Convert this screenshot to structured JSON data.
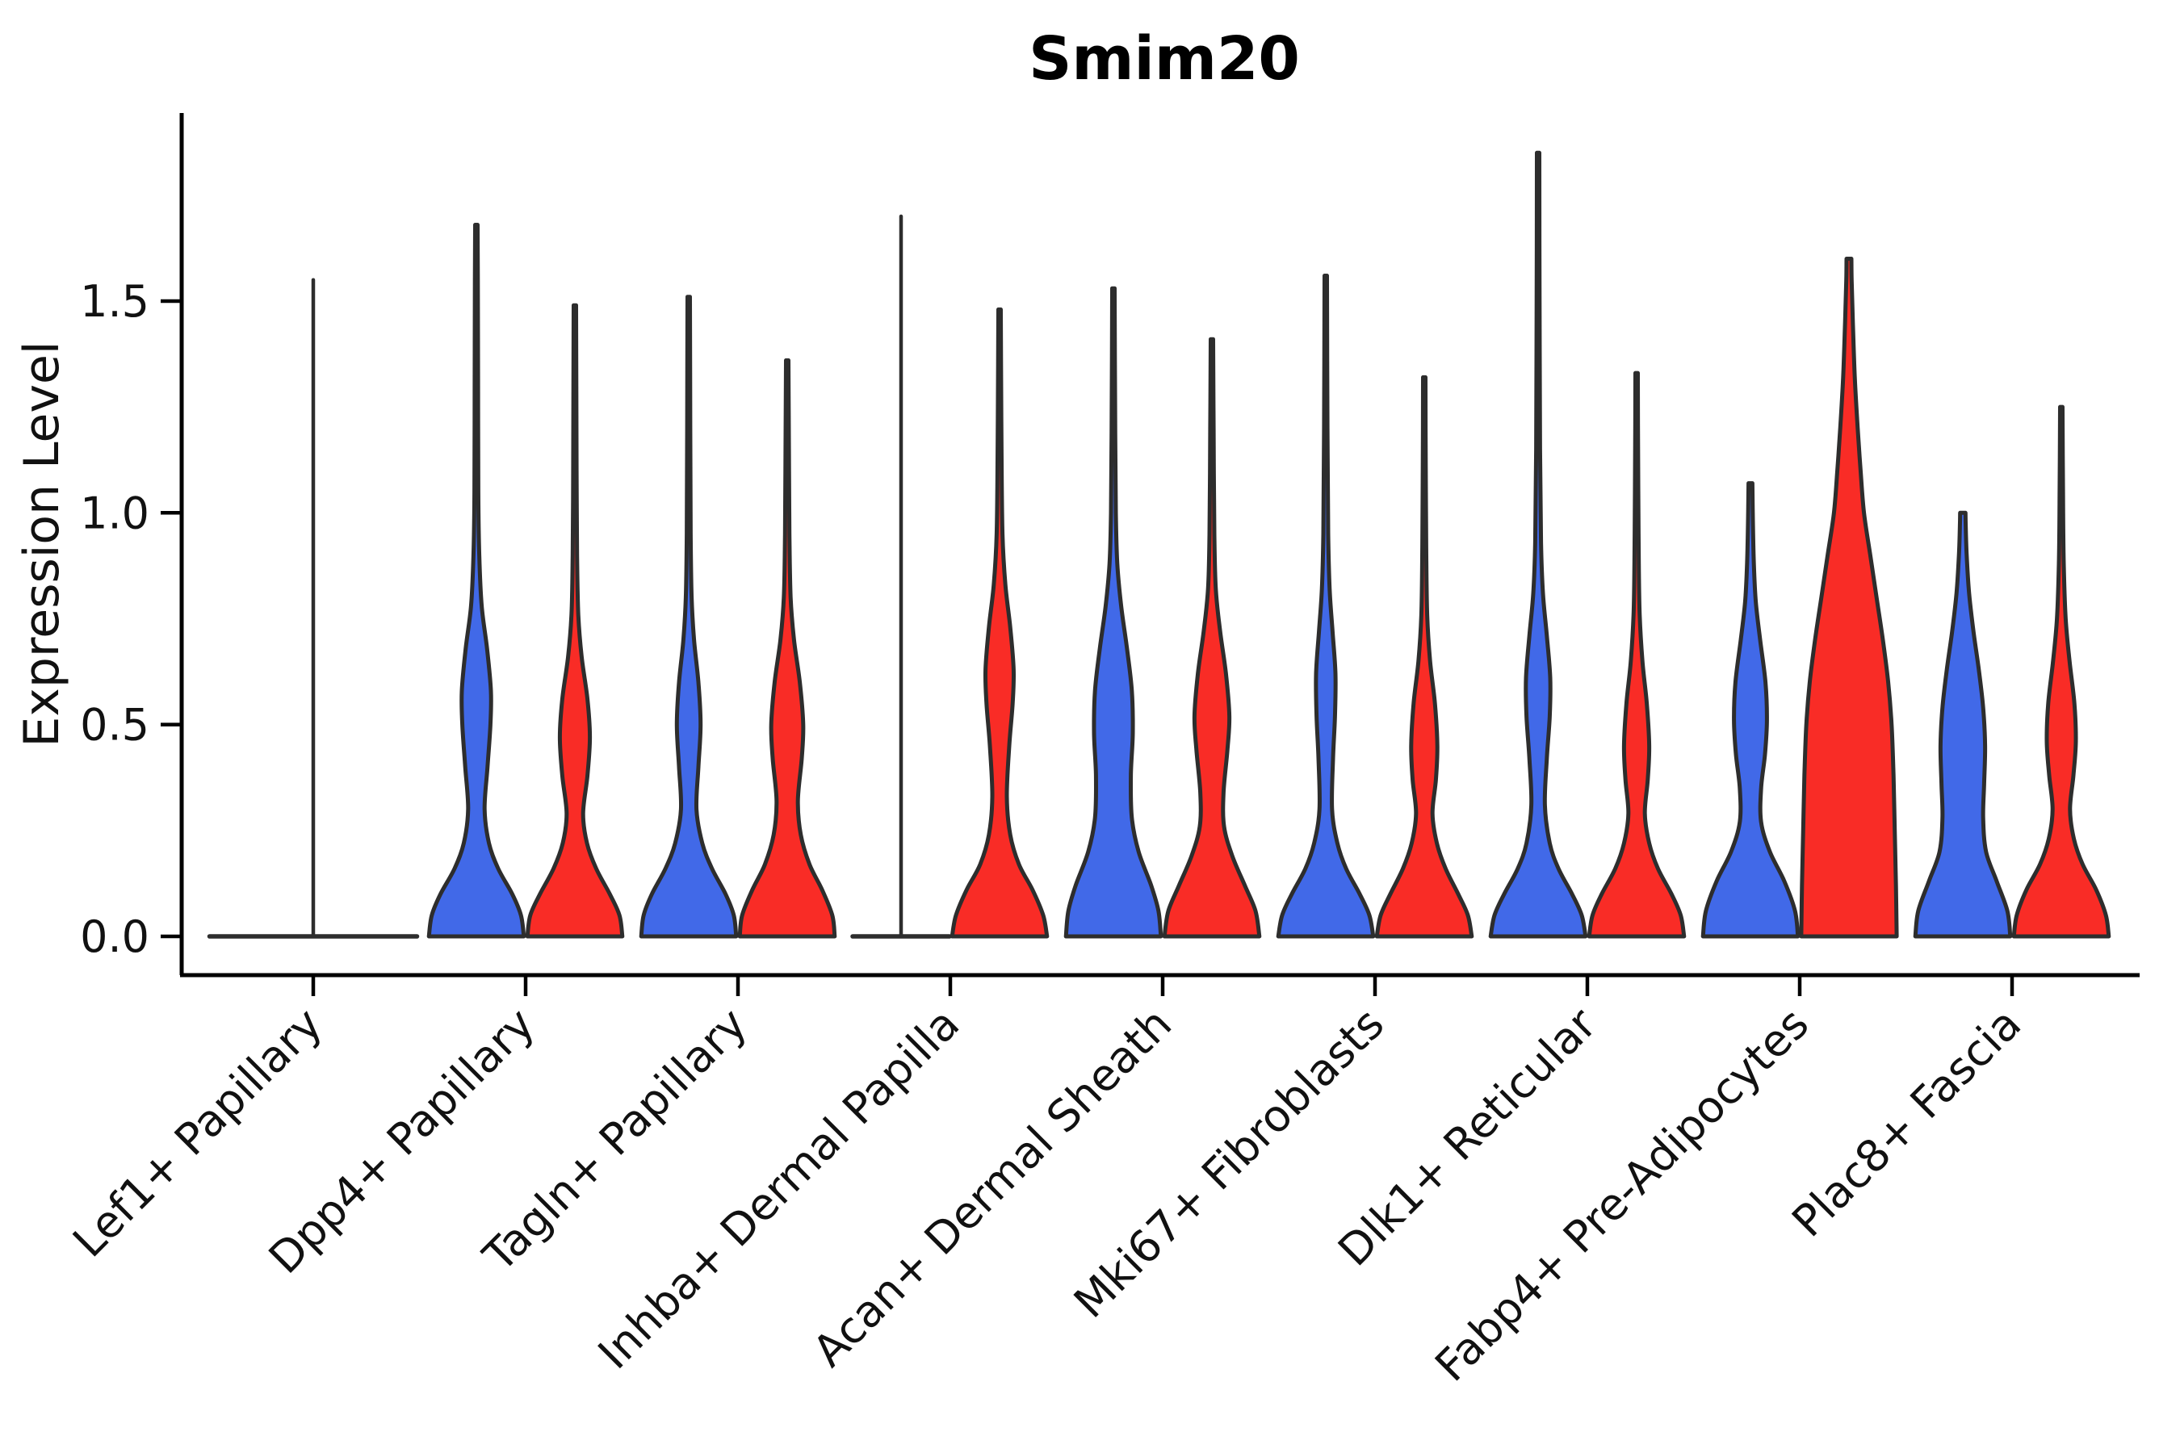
{
  "title": "Smim20",
  "y_axis": {
    "label": "Expression Level",
    "tick_labels": [
      "0.0",
      "0.5",
      "1.0",
      "1.5"
    ],
    "tick_values": [
      0,
      0.5,
      1.0,
      1.5
    ]
  },
  "x_axis": {
    "categories": [
      "Lef1+ Papillary",
      "Dpp4+ Papillary",
      "Tagln+ Papillary",
      "Inhba+ Dermal Papilla",
      "Acan+ Dermal Sheath",
      "Mki67+ Fibroblasts",
      "Dlk1+ Reticular",
      "Fabp4+ Pre-Adipocytes",
      "Plac8+ Fascia"
    ]
  },
  "colors": {
    "blue": "#4169E8",
    "red": "#F92C26",
    "outline": "#2D2D2D",
    "axis": "#000000",
    "text": "#111111"
  },
  "chart_data": {
    "type": "violin",
    "title": "Smim20",
    "ylabel": "Expression Level",
    "ylim": [
      -0.09,
      1.94
    ],
    "grid": false,
    "legend": "none",
    "categories": [
      "Lef1+ Papillary",
      "Dpp4+ Papillary",
      "Tagln+ Papillary",
      "Inhba+ Dermal Papilla",
      "Acan+ Dermal Sheath",
      "Mki67+ Fibroblasts",
      "Dlk1+ Reticular",
      "Fabp4+ Pre-Adipocytes",
      "Plac8+ Fascia"
    ],
    "series": [
      {
        "name": "blue",
        "color": "#4169E8",
        "violins": [
          {
            "flat": true,
            "span": "full",
            "spike": 1.55
          },
          {
            "max": 1.68,
            "profile": [
              [
                0,
                0.98
              ],
              [
                0.05,
                0.92
              ],
              [
                0.1,
                0.74
              ],
              [
                0.16,
                0.45
              ],
              [
                0.22,
                0.26
              ],
              [
                0.3,
                0.17
              ],
              [
                0.4,
                0.23
              ],
              [
                0.5,
                0.29
              ],
              [
                0.58,
                0.3
              ],
              [
                0.68,
                0.22
              ],
              [
                0.78,
                0.11
              ],
              [
                0.9,
                0.06
              ],
              [
                1.05,
                0.04
              ],
              [
                1.3,
                0.035
              ],
              [
                1.55,
                0.03
              ],
              [
                1.68,
                0.025
              ]
            ]
          },
          {
            "max": 1.51,
            "profile": [
              [
                0,
                0.98
              ],
              [
                0.05,
                0.93
              ],
              [
                0.1,
                0.76
              ],
              [
                0.16,
                0.48
              ],
              [
                0.22,
                0.28
              ],
              [
                0.3,
                0.16
              ],
              [
                0.4,
                0.2
              ],
              [
                0.5,
                0.245
              ],
              [
                0.6,
                0.2
              ],
              [
                0.7,
                0.11
              ],
              [
                0.8,
                0.06
              ],
              [
                0.95,
                0.04
              ],
              [
                1.2,
                0.032
              ],
              [
                1.51,
                0.025
              ]
            ]
          },
          {
            "flat": true,
            "span": "half",
            "spike": 1.7
          },
          {
            "max": 1.53,
            "profile": [
              [
                0,
                0.98
              ],
              [
                0.06,
                0.93
              ],
              [
                0.12,
                0.78
              ],
              [
                0.2,
                0.52
              ],
              [
                0.28,
                0.38
              ],
              [
                0.38,
                0.36
              ],
              [
                0.48,
                0.4
              ],
              [
                0.58,
                0.38
              ],
              [
                0.68,
                0.28
              ],
              [
                0.78,
                0.16
              ],
              [
                0.88,
                0.08
              ],
              [
                1.0,
                0.05
              ],
              [
                1.25,
                0.035
              ],
              [
                1.53,
                0.025
              ]
            ]
          },
          {
            "max": 1.56,
            "profile": [
              [
                0,
                0.98
              ],
              [
                0.05,
                0.9
              ],
              [
                0.1,
                0.7
              ],
              [
                0.16,
                0.42
              ],
              [
                0.22,
                0.24
              ],
              [
                0.3,
                0.13
              ],
              [
                0.42,
                0.15
              ],
              [
                0.52,
                0.19
              ],
              [
                0.62,
                0.2
              ],
              [
                0.72,
                0.14
              ],
              [
                0.82,
                0.08
              ],
              [
                0.95,
                0.05
              ],
              [
                1.2,
                0.035
              ],
              [
                1.56,
                0.025
              ]
            ]
          },
          {
            "max": 1.85,
            "profile": [
              [
                0,
                0.98
              ],
              [
                0.05,
                0.9
              ],
              [
                0.1,
                0.7
              ],
              [
                0.16,
                0.42
              ],
              [
                0.22,
                0.24
              ],
              [
                0.31,
                0.14
              ],
              [
                0.42,
                0.18
              ],
              [
                0.52,
                0.24
              ],
              [
                0.61,
                0.25
              ],
              [
                0.71,
                0.18
              ],
              [
                0.81,
                0.1
              ],
              [
                0.93,
                0.06
              ],
              [
                1.15,
                0.04
              ],
              [
                1.5,
                0.03
              ],
              [
                1.85,
                0.025
              ]
            ]
          },
          {
            "max": 1.07,
            "profile": [
              [
                0,
                0.98
              ],
              [
                0.06,
                0.92
              ],
              [
                0.13,
                0.7
              ],
              [
                0.2,
                0.4
              ],
              [
                0.27,
                0.22
              ],
              [
                0.35,
                0.22
              ],
              [
                0.43,
                0.3
              ],
              [
                0.51,
                0.34
              ],
              [
                0.6,
                0.31
              ],
              [
                0.7,
                0.2
              ],
              [
                0.79,
                0.11
              ],
              [
                0.88,
                0.07
              ],
              [
                0.98,
                0.05
              ],
              [
                1.07,
                0.04
              ]
            ]
          },
          {
            "max": 1.0,
            "profile": [
              [
                0,
                0.98
              ],
              [
                0.06,
                0.92
              ],
              [
                0.13,
                0.7
              ],
              [
                0.2,
                0.48
              ],
              [
                0.28,
                0.42
              ],
              [
                0.36,
                0.44
              ],
              [
                0.45,
                0.46
              ],
              [
                0.54,
                0.42
              ],
              [
                0.63,
                0.33
              ],
              [
                0.72,
                0.22
              ],
              [
                0.81,
                0.13
              ],
              [
                0.9,
                0.08
              ],
              [
                0.97,
                0.06
              ],
              [
                1.0,
                0.055
              ]
            ]
          }
        ]
      },
      {
        "name": "red",
        "color": "#F92C26",
        "violins": [
          {
            "absent": true
          },
          {
            "max": 1.49,
            "profile": [
              [
                0,
                0.98
              ],
              [
                0.05,
                0.92
              ],
              [
                0.1,
                0.72
              ],
              [
                0.16,
                0.44
              ],
              [
                0.22,
                0.25
              ],
              [
                0.29,
                0.17
              ],
              [
                0.38,
                0.26
              ],
              [
                0.47,
                0.31
              ],
              [
                0.56,
                0.26
              ],
              [
                0.66,
                0.14
              ],
              [
                0.76,
                0.07
              ],
              [
                0.9,
                0.045
              ],
              [
                1.1,
                0.035
              ],
              [
                1.3,
                0.03
              ],
              [
                1.49,
                0.025
              ]
            ]
          },
          {
            "max": 1.36,
            "profile": [
              [
                0,
                0.98
              ],
              [
                0.05,
                0.93
              ],
              [
                0.11,
                0.72
              ],
              [
                0.17,
                0.46
              ],
              [
                0.24,
                0.28
              ],
              [
                0.32,
                0.22
              ],
              [
                0.42,
                0.3
              ],
              [
                0.5,
                0.33
              ],
              [
                0.6,
                0.26
              ],
              [
                0.7,
                0.14
              ],
              [
                0.8,
                0.07
              ],
              [
                0.95,
                0.045
              ],
              [
                1.15,
                0.035
              ],
              [
                1.36,
                0.025
              ]
            ]
          },
          {
            "max": 1.48,
            "profile": [
              [
                0,
                0.98
              ],
              [
                0.05,
                0.9
              ],
              [
                0.11,
                0.68
              ],
              [
                0.17,
                0.4
              ],
              [
                0.24,
                0.22
              ],
              [
                0.33,
                0.15
              ],
              [
                0.45,
                0.2
              ],
              [
                0.55,
                0.27
              ],
              [
                0.63,
                0.29
              ],
              [
                0.73,
                0.22
              ],
              [
                0.83,
                0.12
              ],
              [
                0.95,
                0.06
              ],
              [
                1.15,
                0.04
              ],
              [
                1.35,
                0.03
              ],
              [
                1.48,
                0.025
              ]
            ]
          },
          {
            "max": 1.41,
            "profile": [
              [
                0,
                0.98
              ],
              [
                0.06,
                0.9
              ],
              [
                0.12,
                0.68
              ],
              [
                0.19,
                0.42
              ],
              [
                0.26,
                0.25
              ],
              [
                0.34,
                0.24
              ],
              [
                0.44,
                0.32
              ],
              [
                0.52,
                0.36
              ],
              [
                0.62,
                0.29
              ],
              [
                0.72,
                0.17
              ],
              [
                0.82,
                0.08
              ],
              [
                0.95,
                0.05
              ],
              [
                1.2,
                0.035
              ],
              [
                1.41,
                0.025
              ]
            ]
          },
          {
            "max": 1.32,
            "profile": [
              [
                0,
                0.98
              ],
              [
                0.05,
                0.9
              ],
              [
                0.1,
                0.7
              ],
              [
                0.16,
                0.44
              ],
              [
                0.22,
                0.26
              ],
              [
                0.29,
                0.17
              ],
              [
                0.37,
                0.24
              ],
              [
                0.45,
                0.27
              ],
              [
                0.55,
                0.22
              ],
              [
                0.65,
                0.12
              ],
              [
                0.76,
                0.06
              ],
              [
                0.92,
                0.04
              ],
              [
                1.12,
                0.03
              ],
              [
                1.32,
                0.025
              ]
            ]
          },
          {
            "max": 1.33,
            "profile": [
              [
                0,
                0.98
              ],
              [
                0.05,
                0.91
              ],
              [
                0.1,
                0.72
              ],
              [
                0.16,
                0.44
              ],
              [
                0.22,
                0.26
              ],
              [
                0.29,
                0.17
              ],
              [
                0.37,
                0.23
              ],
              [
                0.45,
                0.26
              ],
              [
                0.55,
                0.21
              ],
              [
                0.65,
                0.12
              ],
              [
                0.77,
                0.06
              ],
              [
                0.95,
                0.04
              ],
              [
                1.15,
                0.03
              ],
              [
                1.33,
                0.025
              ]
            ]
          },
          {
            "max": 1.6,
            "profile": [
              [
                0,
                0.985
              ],
              [
                0.12,
                0.97
              ],
              [
                0.25,
                0.945
              ],
              [
                0.38,
                0.92
              ],
              [
                0.5,
                0.88
              ],
              [
                0.6,
                0.81
              ],
              [
                0.7,
                0.7
              ],
              [
                0.8,
                0.57
              ],
              [
                0.9,
                0.44
              ],
              [
                1.0,
                0.31
              ],
              [
                1.1,
                0.24
              ],
              [
                1.2,
                0.18
              ],
              [
                1.32,
                0.12
              ],
              [
                1.45,
                0.08
              ],
              [
                1.55,
                0.055
              ],
              [
                1.6,
                0.05
              ]
            ]
          },
          {
            "max": 1.25,
            "profile": [
              [
                0,
                0.98
              ],
              [
                0.05,
                0.92
              ],
              [
                0.11,
                0.72
              ],
              [
                0.17,
                0.44
              ],
              [
                0.23,
                0.26
              ],
              [
                0.3,
                0.18
              ],
              [
                0.38,
                0.25
              ],
              [
                0.46,
                0.3
              ],
              [
                0.55,
                0.27
              ],
              [
                0.65,
                0.17
              ],
              [
                0.75,
                0.09
              ],
              [
                0.88,
                0.05
              ],
              [
                1.05,
                0.035
              ],
              [
                1.25,
                0.025
              ]
            ]
          }
        ]
      }
    ]
  }
}
